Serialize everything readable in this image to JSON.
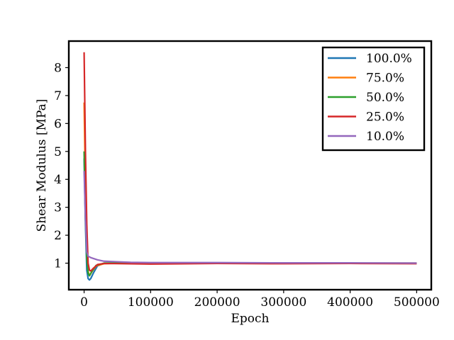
{
  "chart_data": {
    "type": "line",
    "title": "",
    "xlabel": "Epoch",
    "ylabel": "Shear Modulus [MPa]",
    "xlim": [
      -23000,
      522000
    ],
    "ylim": [
      0.05,
      8.95
    ],
    "xticks": [
      0,
      100000,
      200000,
      300000,
      400000,
      500000
    ],
    "xtick_labels": [
      "0",
      "100000",
      "200000",
      "300000",
      "400000",
      "500000"
    ],
    "yticks": [
      1,
      2,
      3,
      4,
      5,
      6,
      7,
      8
    ],
    "ytick_labels": [
      "1",
      "2",
      "3",
      "4",
      "5",
      "6",
      "7",
      "8"
    ],
    "grid": false,
    "legend_position": "top-right",
    "series": [
      {
        "name": "100.0%",
        "color": "#1f77b4",
        "points": [
          [
            0,
            4.75
          ],
          [
            2000,
            2.4
          ],
          [
            4000,
            0.75
          ],
          [
            6000,
            0.45
          ],
          [
            8000,
            0.4
          ],
          [
            10000,
            0.45
          ],
          [
            14000,
            0.65
          ],
          [
            20000,
            0.9
          ],
          [
            30000,
            1.0
          ],
          [
            60000,
            1.01
          ],
          [
            100000,
            1.0
          ],
          [
            200000,
            1.0
          ],
          [
            300000,
            1.0
          ],
          [
            400000,
            1.0
          ],
          [
            500000,
            1.0
          ]
        ]
      },
      {
        "name": "75.0%",
        "color": "#ff7f0e",
        "points": [
          [
            0,
            6.75
          ],
          [
            2000,
            3.6
          ],
          [
            4000,
            1.5
          ],
          [
            6000,
            0.7
          ],
          [
            8000,
            0.55
          ],
          [
            12000,
            0.7
          ],
          [
            18000,
            0.9
          ],
          [
            30000,
            0.98
          ],
          [
            60000,
            1.0
          ],
          [
            100000,
            1.0
          ],
          [
            200000,
            1.0
          ],
          [
            300000,
            0.99
          ],
          [
            400000,
            1.0
          ],
          [
            500000,
            1.0
          ]
        ]
      },
      {
        "name": "50.0%",
        "color": "#2ca02c",
        "points": [
          [
            0,
            5.0
          ],
          [
            2000,
            2.6
          ],
          [
            4000,
            1.2
          ],
          [
            6000,
            0.65
          ],
          [
            8000,
            0.55
          ],
          [
            12000,
            0.72
          ],
          [
            18000,
            0.92
          ],
          [
            30000,
            1.0
          ],
          [
            60000,
            1.0
          ],
          [
            100000,
            1.0
          ],
          [
            200000,
            1.0
          ],
          [
            300000,
            1.0
          ],
          [
            400000,
            1.0
          ],
          [
            500000,
            0.99
          ]
        ]
      },
      {
        "name": "25.0%",
        "color": "#d62728",
        "points": [
          [
            0,
            8.55
          ],
          [
            2000,
            5.0
          ],
          [
            4000,
            2.4
          ],
          [
            6000,
            1.0
          ],
          [
            8000,
            0.75
          ],
          [
            10000,
            0.72
          ],
          [
            14000,
            0.82
          ],
          [
            20000,
            0.95
          ],
          [
            30000,
            0.99
          ],
          [
            60000,
            0.98
          ],
          [
            100000,
            0.97
          ],
          [
            200000,
            0.99
          ],
          [
            300000,
            0.98
          ],
          [
            400000,
            0.99
          ],
          [
            500000,
            0.98
          ]
        ]
      },
      {
        "name": "10.0%",
        "color": "#9467bd",
        "points": [
          [
            0,
            4.3
          ],
          [
            2000,
            2.6
          ],
          [
            4000,
            1.4
          ],
          [
            6000,
            1.25
          ],
          [
            10000,
            1.2
          ],
          [
            20000,
            1.12
          ],
          [
            30000,
            1.07
          ],
          [
            50000,
            1.05
          ],
          [
            70000,
            1.03
          ],
          [
            100000,
            1.02
          ],
          [
            200000,
            1.02
          ],
          [
            300000,
            1.01
          ],
          [
            400000,
            1.01
          ],
          [
            500000,
            1.0
          ]
        ]
      }
    ]
  }
}
